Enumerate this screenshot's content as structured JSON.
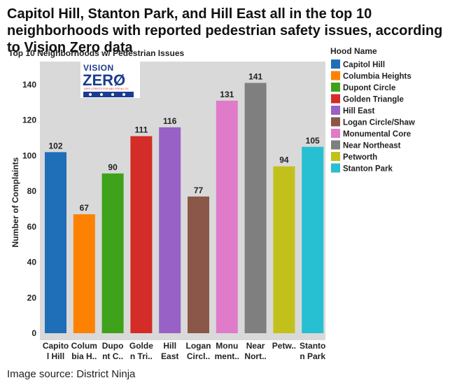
{
  "headline": "Capitol Hill, Stanton Park, and Hill East all in the top 10 neighborhoods with reported pedestrian safety issues, according to Vision Zero data",
  "source": "Image source: District Ninja",
  "logo": {
    "text_line1": "VISION",
    "text_line2": "ZERØ",
    "tagline": "SAFE STREETS FOR AND FOR ALL DC"
  },
  "chart_data": {
    "type": "bar",
    "title": "Top 10 Neighborhoods w/ Pedestrian Issues",
    "ylabel": "Number of Complaints",
    "xlabel": "",
    "ylim": [
      0,
      150
    ],
    "yticks": [
      0,
      20,
      40,
      60,
      80,
      100,
      120,
      140
    ],
    "legend_title": "Hood Name",
    "legend_position": "right",
    "grid": false,
    "categories": [
      "Capitol Hill",
      "Columbia Heights",
      "Dupont Circle",
      "Golden Triangle",
      "Hill East",
      "Logan Circle/Shaw",
      "Monumental Core",
      "Near Northeast",
      "Petworth",
      "Stanton Park"
    ],
    "tick_labels": [
      [
        "Capito",
        "l Hill"
      ],
      [
        "Colum",
        "bia H.."
      ],
      [
        "Dupo",
        "nt C.."
      ],
      [
        "Golde",
        "n Tri.."
      ],
      [
        "Hill",
        "East"
      ],
      [
        "Logan",
        "Circl.."
      ],
      [
        "Monu",
        "ment.."
      ],
      [
        "Near",
        "Nort.."
      ],
      [
        "Petw..",
        ""
      ],
      [
        "Stanto",
        "n Park"
      ]
    ],
    "values": [
      102,
      67,
      90,
      111,
      116,
      77,
      131,
      141,
      94,
      105
    ],
    "colors": [
      "#1f6eb8",
      "#fd8204",
      "#3ea21b",
      "#d42c27",
      "#9761c5",
      "#8b5748",
      "#e07bca",
      "#7f7f7f",
      "#c2c11c",
      "#27bfd2"
    ]
  }
}
